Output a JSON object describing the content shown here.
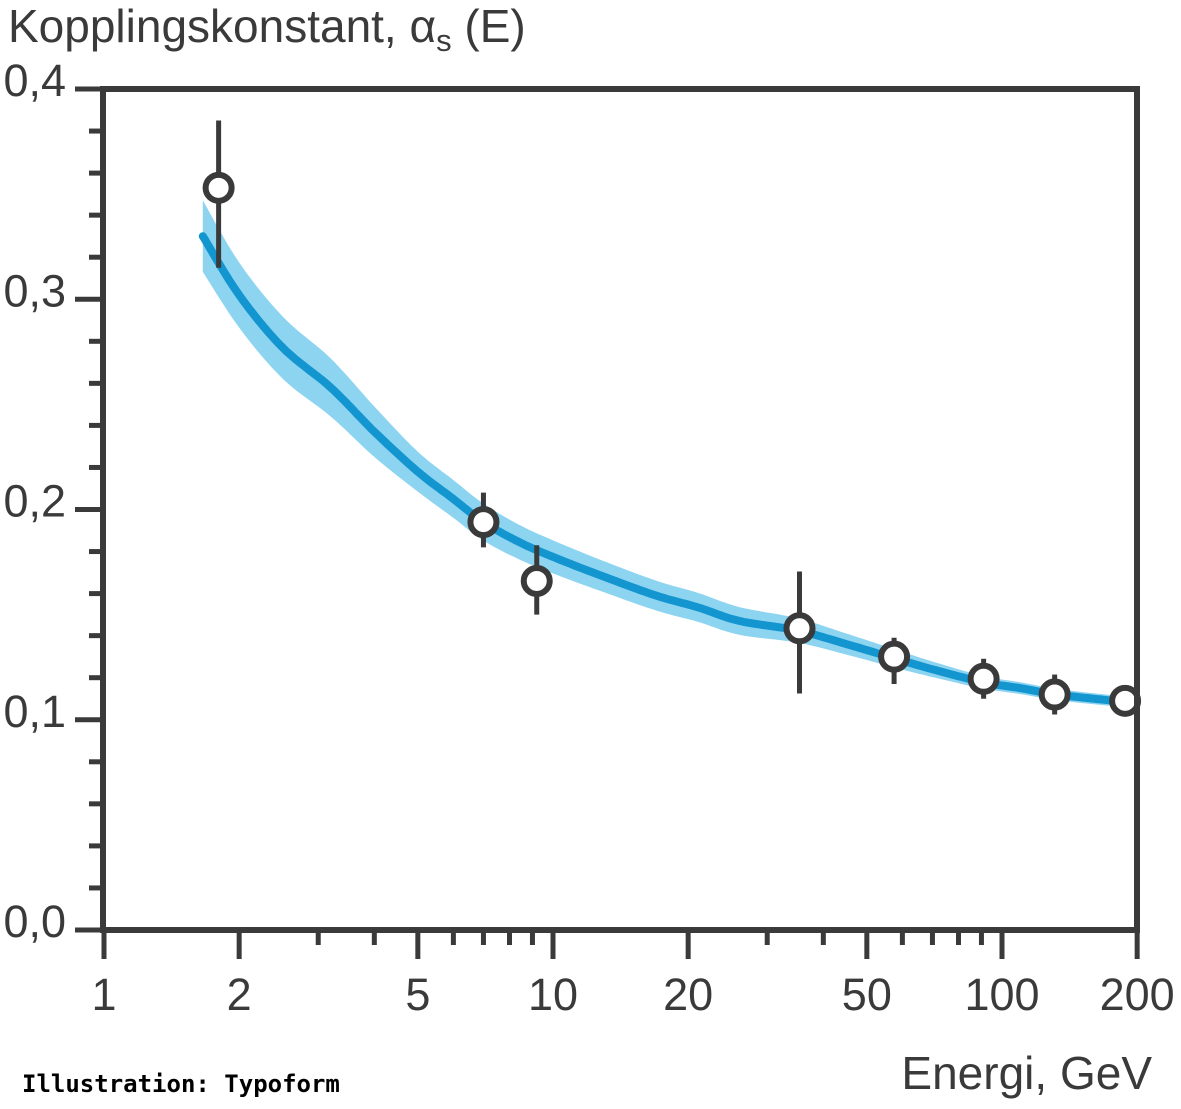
{
  "title": {
    "prefix": "Kopplingskonstant, ",
    "symbol": "α",
    "subscript": "s",
    "suffix": " (E)"
  },
  "credit": "Illustration: Typoform",
  "x_axis": {
    "label": "Energi, GeV",
    "scale": "log",
    "major_ticks": [
      1,
      2,
      5,
      10,
      20,
      50,
      100,
      200
    ],
    "major_labels": [
      "1",
      "2",
      "5",
      "10",
      "20",
      "50",
      "100",
      "200"
    ],
    "minor_ticks": [
      3,
      4,
      6,
      7,
      8,
      9,
      30,
      40,
      60,
      70,
      80,
      90
    ],
    "range": [
      1,
      200
    ]
  },
  "y_axis": {
    "major_ticks": [
      0.0,
      0.1,
      0.2,
      0.3,
      0.4
    ],
    "major_labels": [
      "0,0",
      "0,1",
      "0,2",
      "0,3",
      "0,4"
    ],
    "minor_step": 0.02,
    "range": [
      0.0,
      0.4
    ]
  },
  "colors": {
    "ink": "#3a3a3a",
    "band": "#8dd4f1",
    "curve": "#1395d0",
    "marker_fill": "#ffffff",
    "background": "#ffffff",
    "credit_ink": "#000000"
  },
  "chart_data": {
    "type": "line",
    "title": "Kopplingskonstant, α_s (E)",
    "xlabel": "Energi, GeV",
    "ylabel": "Kopplingskonstant α_s",
    "x_scale": "log",
    "xlim": [
      1,
      200
    ],
    "ylim": [
      0.0,
      0.4
    ],
    "grid": false,
    "legend": false,
    "x_major_ticks": [
      1,
      2,
      5,
      10,
      20,
      50,
      100,
      200
    ],
    "y_major_ticks": [
      0.0,
      0.1,
      0.2,
      0.3,
      0.4
    ],
    "series": [
      {
        "name": "theory-curve-with-uncertainty-band",
        "type": "line",
        "E": [
          1.66,
          2.0,
          2.5,
          3.2,
          4.0,
          5.0,
          6.0,
          7.0,
          8.5,
          10.4,
          13,
          17,
          21,
          26,
          35,
          45,
          57,
          70,
          91,
          110,
          130,
          160,
          195
        ],
        "alpha_s": [
          0.33,
          0.302,
          0.277,
          0.258,
          0.237,
          0.218,
          0.205,
          0.194,
          0.184,
          0.176,
          0.168,
          0.159,
          0.1535,
          0.147,
          0.1425,
          0.136,
          0.1295,
          0.124,
          0.1178,
          0.115,
          0.1122,
          0.11,
          0.1082
        ],
        "band_halfwidth": [
          0.017,
          0.0155,
          0.0148,
          0.0138,
          0.012,
          0.0095,
          0.009,
          0.0088,
          0.0082,
          0.0078,
          0.0074,
          0.0071,
          0.0069,
          0.0066,
          0.0058,
          0.005,
          0.0044,
          0.0037,
          0.003,
          0.0028,
          0.0027,
          0.0026,
          0.0025
        ]
      },
      {
        "name": "measured-points",
        "type": "scatter",
        "points": [
          {
            "E": 1.8,
            "alpha_s": 0.353,
            "err_plus": 0.032,
            "err_minus": 0.038
          },
          {
            "E": 7.0,
            "alpha_s": 0.194,
            "err_plus": 0.014,
            "err_minus": 0.012
          },
          {
            "E": 9.2,
            "alpha_s": 0.166,
            "err_plus": 0.017,
            "err_minus": 0.016
          },
          {
            "E": 35.4,
            "alpha_s": 0.1435,
            "err_plus": 0.027,
            "err_minus": 0.031
          },
          {
            "E": 57.5,
            "alpha_s": 0.13,
            "err_plus": 0.009,
            "err_minus": 0.013
          },
          {
            "E": 91.0,
            "alpha_s": 0.1195,
            "err_plus": 0.0095,
            "err_minus": 0.0095
          },
          {
            "E": 131.0,
            "alpha_s": 0.112,
            "err_plus": 0.0095,
            "err_minus": 0.0095
          },
          {
            "E": 188.0,
            "alpha_s": 0.109,
            "err_plus": 0.007,
            "err_minus": 0.007
          }
        ]
      }
    ]
  }
}
